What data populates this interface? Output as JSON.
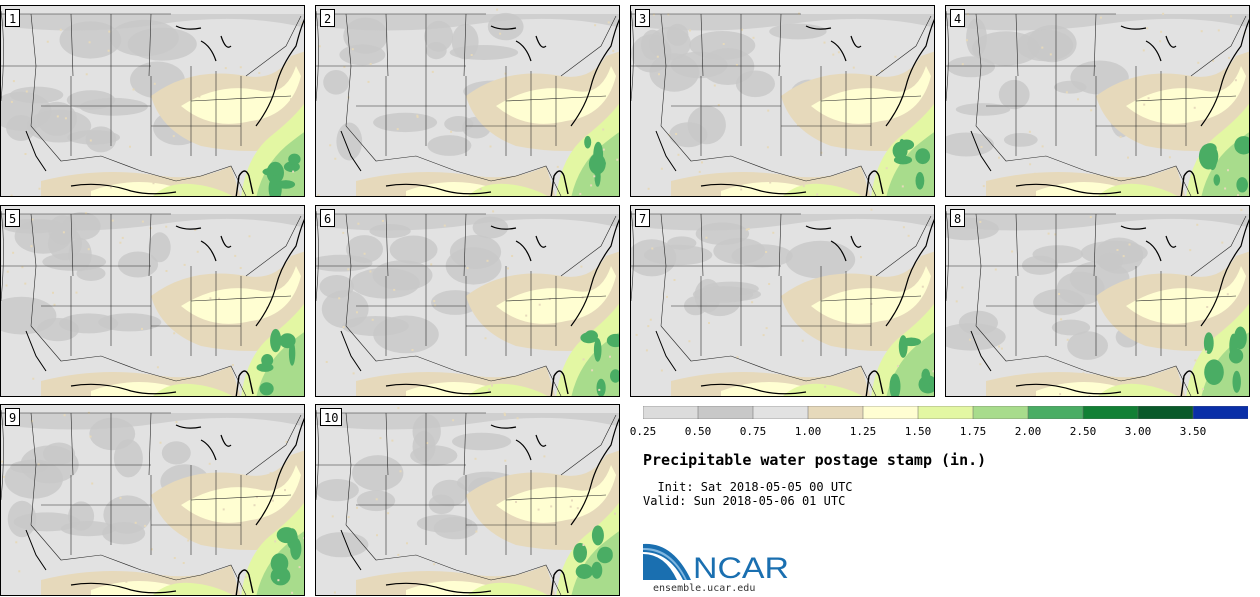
{
  "panels": [
    {
      "label": "1"
    },
    {
      "label": "2"
    },
    {
      "label": "3"
    },
    {
      "label": "4"
    },
    {
      "label": "5"
    },
    {
      "label": "6"
    },
    {
      "label": "7"
    },
    {
      "label": "8"
    },
    {
      "label": "9"
    },
    {
      "label": "10"
    }
  ],
  "colorbar": {
    "colors": [
      "#dcdcdc",
      "#c8c8c8",
      "#e2e2e2",
      "#e6d9bb",
      "#fffed2",
      "#e3f7a3",
      "#a8dc8c",
      "#4aad64",
      "#128035",
      "#0a5a2a",
      "#0a2fa8"
    ],
    "tick_labels": [
      "0.25",
      "0.50",
      "0.75",
      "1.00",
      "1.25",
      "1.50",
      "1.75",
      "2.00",
      "2.50",
      "3.00",
      "3.50"
    ]
  },
  "title": "Precipitable water postage stamp (in.)",
  "init_text": "  Init: Sat 2018-05-05 00 UTC",
  "valid_text": "Valid: Sun 2018-05-06 01 UTC",
  "logo": {
    "text": "NCAR",
    "brand_color": "#1a6fb0"
  },
  "site": "ensemble.ucar.edu"
}
